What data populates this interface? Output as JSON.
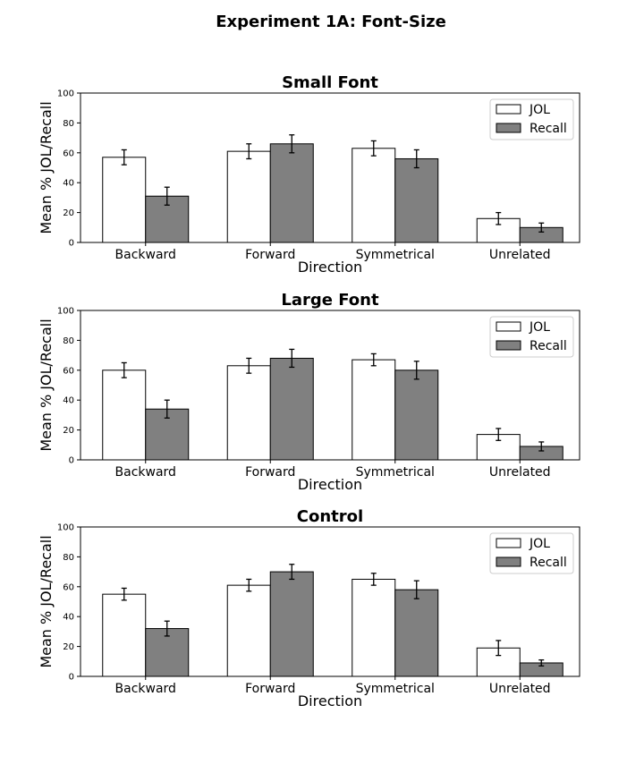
{
  "figure": {
    "suptitle": "Experiment 1A: Font-Size"
  },
  "colors": {
    "jol": "#ffffff",
    "recall": "#808080",
    "edge": "#000000"
  },
  "chart_data": [
    {
      "type": "bar",
      "title": "Small Font",
      "xlabel": "Direction",
      "ylabel": "Mean % JOL/Recall",
      "ylim": [
        0,
        100
      ],
      "yticks": [
        0,
        20,
        40,
        60,
        80,
        100
      ],
      "legend_position": "top-right",
      "categories": [
        "Backward",
        "Forward",
        "Symmetrical",
        "Unrelated"
      ],
      "series": [
        {
          "name": "JOL",
          "values": [
            57,
            61,
            63,
            16
          ],
          "errors": [
            5,
            5,
            5,
            4
          ]
        },
        {
          "name": "Recall",
          "values": [
            31,
            66,
            56,
            10
          ],
          "errors": [
            6,
            6,
            6,
            3
          ]
        }
      ]
    },
    {
      "type": "bar",
      "title": "Large Font",
      "xlabel": "Direction",
      "ylabel": "Mean % JOL/Recall",
      "ylim": [
        0,
        100
      ],
      "yticks": [
        0,
        20,
        40,
        60,
        80,
        100
      ],
      "legend_position": "top-right",
      "categories": [
        "Backward",
        "Forward",
        "Symmetrical",
        "Unrelated"
      ],
      "series": [
        {
          "name": "JOL",
          "values": [
            60,
            63,
            67,
            17
          ],
          "errors": [
            5,
            5,
            4,
            4
          ]
        },
        {
          "name": "Recall",
          "values": [
            34,
            68,
            60,
            9
          ],
          "errors": [
            6,
            6,
            6,
            3
          ]
        }
      ]
    },
    {
      "type": "bar",
      "title": "Control",
      "xlabel": "Direction",
      "ylabel": "Mean % JOL/Recall",
      "ylim": [
        0,
        100
      ],
      "yticks": [
        0,
        20,
        40,
        60,
        80,
        100
      ],
      "legend_position": "top-right",
      "categories": [
        "Backward",
        "Forward",
        "Symmetrical",
        "Unrelated"
      ],
      "series": [
        {
          "name": "JOL",
          "values": [
            55,
            61,
            65,
            19
          ],
          "errors": [
            4,
            4,
            4,
            5
          ]
        },
        {
          "name": "Recall",
          "values": [
            32,
            70,
            58,
            9
          ],
          "errors": [
            5,
            5,
            6,
            2
          ]
        }
      ]
    }
  ]
}
